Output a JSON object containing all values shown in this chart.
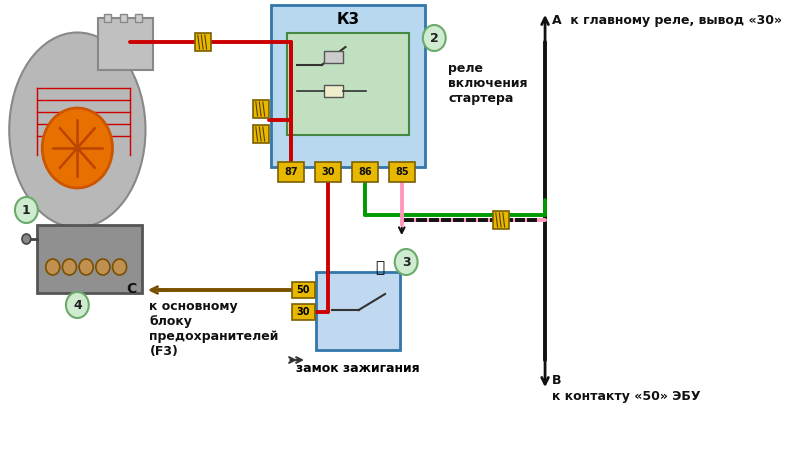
{
  "bg_color": "#ffffff",
  "fig_width": 8.0,
  "fig_height": 4.73,
  "label_1": "1",
  "label_2": "2",
  "label_3": "3",
  "label_4": "4",
  "relay_title": "К3",
  "relay_label": "реле\nвключения\nстартера",
  "ignition_label": "замок зажигания",
  "fuse_label": "к основному\nблоку\nпредохранителей\n(F3)",
  "label_A": "А  к главному реле, вывод «30»",
  "label_B_line1": "В",
  "label_B_line2": "к контакту «50» ЭБУ",
  "label_C": "С",
  "pin_labels": [
    "87",
    "30",
    "86",
    "85"
  ],
  "lock_pins": [
    "50",
    "30"
  ],
  "color_red": "#cc0000",
  "color_green": "#009900",
  "color_pink": "#ff99bb",
  "color_brown": "#7B4F00",
  "color_black": "#111111",
  "color_yellow_conn": "#E8B800",
  "relay_box_fill": "#b8d8f0",
  "relay_inner_fill": "#c0e0c0",
  "lock_box_fill": "#c0d8f0",
  "circle_fill": "#d0ecd0",
  "circle_edge": "#6aaa6a",
  "starter_gray": "#b8b8b8",
  "starter_dark": "#888888",
  "fuse_gray": "#909090",
  "orange_rotor": "#e87000"
}
